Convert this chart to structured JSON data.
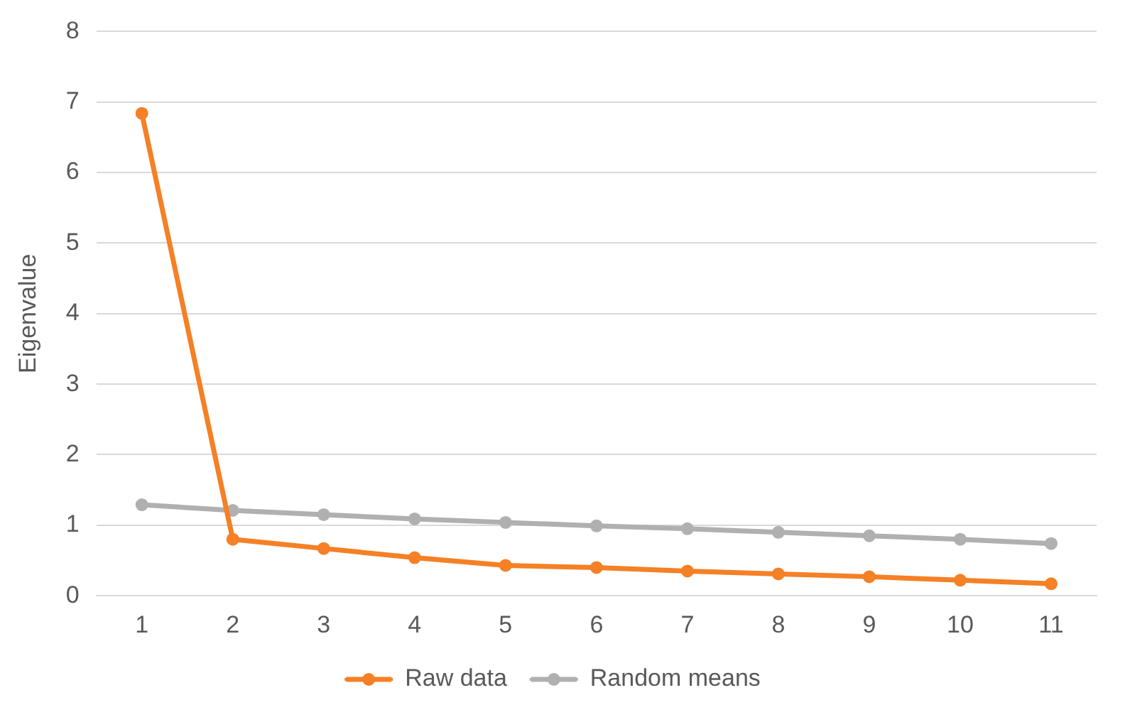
{
  "chart_data": {
    "type": "line",
    "ylabel": "Eigenvalue",
    "categories": [
      "1",
      "2",
      "3",
      "4",
      "5",
      "6",
      "7",
      "8",
      "9",
      "10",
      "11"
    ],
    "series": [
      {
        "name": "Raw data",
        "color": "#f58025",
        "values": [
          6.84,
          0.8,
          0.67,
          0.54,
          0.43,
          0.4,
          0.35,
          0.31,
          0.27,
          0.22,
          0.17
        ]
      },
      {
        "name": "Random means",
        "color": "#b0b0b0",
        "values": [
          1.29,
          1.21,
          1.15,
          1.09,
          1.04,
          0.99,
          0.95,
          0.9,
          0.85,
          0.8,
          0.74
        ]
      }
    ],
    "ylim": [
      0,
      8
    ],
    "yticks": [
      0,
      1,
      2,
      3,
      4,
      5,
      6,
      7,
      8
    ],
    "grid": "y",
    "legend": "bottom",
    "marker": "circle",
    "line_style": "solid"
  }
}
